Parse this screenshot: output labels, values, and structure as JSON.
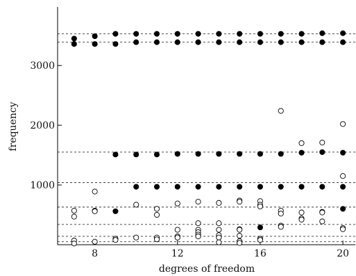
{
  "chart_data": {
    "type": "scatter",
    "xlabel": "degrees of freedom",
    "ylabel": "frequency",
    "xlim": [
      6.2,
      20.6
    ],
    "ylim": [
      0,
      3980
    ],
    "x_ticks": [
      8,
      12,
      16,
      20
    ],
    "x_tick_labels": [
      "8",
      "12",
      "16",
      "20"
    ],
    "y_ticks": [
      1000,
      2000,
      3000
    ],
    "y_tick_labels": [
      "1000",
      "2000",
      "3000"
    ],
    "reference_lines": [
      3530,
      3390,
      1550,
      1040,
      630,
      340,
      140,
      50
    ],
    "series": [
      {
        "marker": "filled",
        "points": [
          [
            7,
            3450
          ],
          [
            7,
            3360
          ],
          [
            8,
            3490
          ],
          [
            8,
            3360
          ],
          [
            8,
            570
          ],
          [
            9,
            3530
          ],
          [
            9,
            3360
          ],
          [
            9,
            1510
          ],
          [
            9,
            560
          ],
          [
            10,
            3530
          ],
          [
            10,
            3390
          ],
          [
            10,
            1510
          ],
          [
            10,
            970
          ],
          [
            11,
            3530
          ],
          [
            11,
            3390
          ],
          [
            11,
            1510
          ],
          [
            11,
            970
          ],
          [
            12,
            3530
          ],
          [
            12,
            3390
          ],
          [
            12,
            1520
          ],
          [
            12,
            970
          ],
          [
            13,
            3530
          ],
          [
            13,
            3390
          ],
          [
            13,
            1520
          ],
          [
            13,
            970
          ],
          [
            14,
            3530
          ],
          [
            14,
            3390
          ],
          [
            14,
            1520
          ],
          [
            14,
            970
          ],
          [
            15,
            3530
          ],
          [
            15,
            3390
          ],
          [
            15,
            1520
          ],
          [
            15,
            970
          ],
          [
            16,
            3530
          ],
          [
            16,
            3390
          ],
          [
            16,
            1520
          ],
          [
            16,
            970
          ],
          [
            16,
            290
          ],
          [
            16,
            100
          ],
          [
            17,
            3530
          ],
          [
            17,
            3390
          ],
          [
            17,
            1520
          ],
          [
            17,
            970
          ],
          [
            18,
            3530
          ],
          [
            18,
            3390
          ],
          [
            18,
            1540
          ],
          [
            18,
            970
          ],
          [
            19,
            3540
          ],
          [
            19,
            3390
          ],
          [
            19,
            1550
          ],
          [
            19,
            970
          ],
          [
            20,
            3540
          ],
          [
            20,
            3390
          ],
          [
            20,
            1540
          ],
          [
            20,
            970
          ],
          [
            20,
            600
          ]
        ]
      },
      {
        "marker": "open",
        "points": [
          [
            7,
            570
          ],
          [
            7,
            470
          ],
          [
            7,
            70
          ],
          [
            7,
            20
          ],
          [
            8,
            890
          ],
          [
            8,
            560
          ],
          [
            8,
            50
          ],
          [
            9,
            100
          ],
          [
            9,
            80
          ],
          [
            10,
            670
          ],
          [
            10,
            120
          ],
          [
            11,
            600
          ],
          [
            11,
            500
          ],
          [
            11,
            120
          ],
          [
            11,
            90
          ],
          [
            12,
            690
          ],
          [
            12,
            250
          ],
          [
            12,
            140
          ],
          [
            12,
            120
          ],
          [
            13,
            720
          ],
          [
            13,
            360
          ],
          [
            13,
            250
          ],
          [
            13,
            210
          ],
          [
            13,
            170
          ],
          [
            13,
            140
          ],
          [
            14,
            700
          ],
          [
            14,
            360
          ],
          [
            14,
            250
          ],
          [
            14,
            160
          ],
          [
            14,
            120
          ],
          [
            14,
            40
          ],
          [
            15,
            740
          ],
          [
            15,
            720
          ],
          [
            15,
            260
          ],
          [
            15,
            250
          ],
          [
            15,
            150
          ],
          [
            15,
            60
          ],
          [
            15,
            30
          ],
          [
            16,
            730
          ],
          [
            16,
            670
          ],
          [
            16,
            640
          ],
          [
            16,
            100
          ],
          [
            16,
            80
          ],
          [
            17,
            2240
          ],
          [
            17,
            570
          ],
          [
            17,
            520
          ],
          [
            17,
            320
          ],
          [
            17,
            300
          ],
          [
            18,
            1700
          ],
          [
            18,
            540
          ],
          [
            18,
            440
          ],
          [
            18,
            420
          ],
          [
            19,
            1710
          ],
          [
            19,
            550
          ],
          [
            19,
            540
          ],
          [
            19,
            390
          ],
          [
            20,
            2020
          ],
          [
            20,
            1150
          ],
          [
            20,
            280
          ],
          [
            20,
            260
          ]
        ]
      }
    ]
  }
}
